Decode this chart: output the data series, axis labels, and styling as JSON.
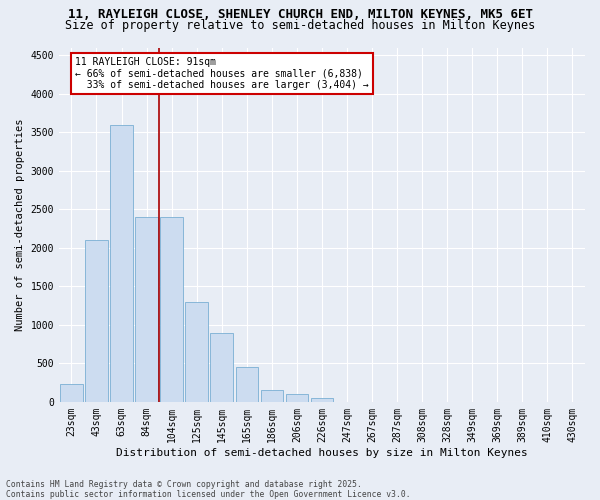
{
  "title1": "11, RAYLEIGH CLOSE, SHENLEY CHURCH END, MILTON KEYNES, MK5 6ET",
  "title2": "Size of property relative to semi-detached houses in Milton Keynes",
  "xlabel": "Distribution of semi-detached houses by size in Milton Keynes",
  "ylabel": "Number of semi-detached properties",
  "categories": [
    "23sqm",
    "43sqm",
    "63sqm",
    "84sqm",
    "104sqm",
    "125sqm",
    "145sqm",
    "165sqm",
    "186sqm",
    "206sqm",
    "226sqm",
    "247sqm",
    "267sqm",
    "287sqm",
    "308sqm",
    "328sqm",
    "349sqm",
    "369sqm",
    "389sqm",
    "410sqm",
    "430sqm"
  ],
  "values": [
    230,
    2100,
    3600,
    2400,
    2400,
    1300,
    900,
    450,
    150,
    100,
    50,
    0,
    0,
    0,
    0,
    0,
    0,
    0,
    0,
    0,
    0
  ],
  "bar_color": "#ccdcf0",
  "bar_edge_color": "#7aafd4",
  "vline_x": 3.5,
  "vline_color": "#aa0000",
  "annotation_line1": "11 RAYLEIGH CLOSE: 91sqm",
  "annotation_line2": "← 66% of semi-detached houses are smaller (6,838)",
  "annotation_line3": "  33% of semi-detached houses are larger (3,404) →",
  "annot_box_facecolor": "#ffffff",
  "annot_box_edgecolor": "#cc0000",
  "ylim": [
    0,
    4600
  ],
  "yticks": [
    0,
    500,
    1000,
    1500,
    2000,
    2500,
    3000,
    3500,
    4000,
    4500
  ],
  "bg_color": "#e8edf5",
  "grid_color": "#ffffff",
  "footnote": "Contains HM Land Registry data © Crown copyright and database right 2025.\nContains public sector information licensed under the Open Government Licence v3.0.",
  "title1_fontsize": 9.0,
  "title2_fontsize": 8.5,
  "xlabel_fontsize": 8.0,
  "ylabel_fontsize": 7.5,
  "tick_fontsize": 7.0,
  "annot_fontsize": 7.0,
  "footnote_fontsize": 5.8
}
